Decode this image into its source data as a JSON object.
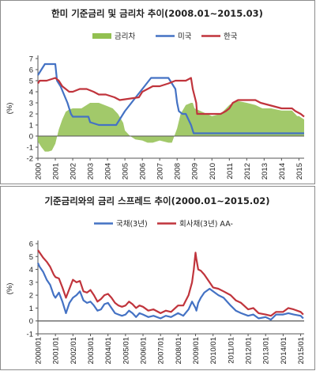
{
  "chart_data": [
    {
      "type": "line",
      "title": "한미 기준금리  및 금리차 추이(2008.01~2015.03)",
      "ylabel": "(%)",
      "ylim": [
        -2,
        7
      ],
      "yticks": [
        "-2",
        "-1",
        "0",
        "1",
        "2",
        "3",
        "4",
        "5",
        "6",
        "7"
      ],
      "xlim": [
        2000,
        2015.3
      ],
      "xticks": [
        "2000",
        "2001",
        "2002",
        "2003",
        "2004",
        "2005",
        "2006",
        "2007",
        "2008",
        "2009",
        "2010",
        "2011",
        "2012",
        "2013",
        "2014",
        "2015"
      ],
      "grid": false,
      "legend_position": "top",
      "series": [
        {
          "name": "금리차",
          "kind": "area",
          "color": "#92c050",
          "x": [
            2000.0,
            2000.2,
            2000.4,
            2000.6,
            2000.8,
            2001.0,
            2001.2,
            2001.4,
            2001.6,
            2001.8,
            2002.0,
            2002.5,
            2003.0,
            2003.5,
            2004.0,
            2004.3,
            2004.6,
            2004.9,
            2005.0,
            2005.3,
            2005.6,
            2006.0,
            2006.3,
            2006.6,
            2007.0,
            2007.5,
            2007.7,
            2008.0,
            2008.2,
            2008.5,
            2008.8,
            2008.9,
            2009.0,
            2010.0,
            2010.5,
            2011.0,
            2011.4,
            2012.0,
            2012.5,
            2012.9,
            2013.0,
            2013.4,
            2014.0,
            2014.6,
            2014.9,
            2015.0,
            2015.3
          ],
          "values": [
            -0.5,
            -1.0,
            -1.4,
            -1.4,
            -1.3,
            -0.7,
            0.6,
            1.5,
            2.2,
            2.4,
            2.5,
            2.5,
            3.0,
            3.0,
            2.7,
            2.5,
            2.0,
            1.2,
            0.5,
            0.0,
            -0.3,
            -0.4,
            -0.6,
            -0.6,
            -0.4,
            -0.6,
            -0.6,
            0.7,
            2.0,
            2.8,
            3.0,
            3.0,
            2.5,
            1.8,
            2.0,
            2.8,
            3.2,
            3.0,
            2.8,
            2.5,
            2.5,
            2.5,
            2.3,
            2.3,
            1.8,
            1.8,
            1.5
          ]
        },
        {
          "name": "미국",
          "kind": "line",
          "color": "#4472c4",
          "x": [
            2000.0,
            2000.2,
            2000.4,
            2000.6,
            2001.0,
            2001.1,
            2001.3,
            2001.5,
            2001.7,
            2001.9,
            2002.0,
            2002.9,
            2003.0,
            2003.5,
            2004.5,
            2004.7,
            2005.0,
            2005.5,
            2006.0,
            2006.5,
            2007.5,
            2007.7,
            2007.9,
            2008.0,
            2008.1,
            2008.3,
            2008.5,
            2008.8,
            2008.95,
            2015.3
          ],
          "values": [
            5.5,
            6.0,
            6.5,
            6.5,
            6.5,
            5.0,
            4.5,
            3.75,
            3.0,
            2.0,
            1.75,
            1.75,
            1.25,
            1.0,
            1.0,
            1.5,
            2.25,
            3.25,
            4.25,
            5.25,
            5.25,
            4.75,
            4.25,
            3.0,
            2.25,
            2.0,
            2.0,
            1.0,
            0.25,
            0.25
          ]
        },
        {
          "name": "한국",
          "kind": "line",
          "color": "#c0343c",
          "x": [
            2000.0,
            2000.1,
            2000.5,
            2001.0,
            2001.2,
            2001.4,
            2001.8,
            2002.0,
            2002.4,
            2002.8,
            2003.2,
            2003.5,
            2003.9,
            2004.4,
            2004.7,
            2005.8,
            2006.0,
            2006.6,
            2007.0,
            2007.5,
            2007.9,
            2008.0,
            2008.5,
            2008.8,
            2008.9,
            2009.1,
            2009.15,
            2010.5,
            2010.8,
            2011.0,
            2011.2,
            2011.5,
            2012.5,
            2012.8,
            2013.4,
            2014.0,
            2014.6,
            2014.8,
            2015.1,
            2015.3
          ],
          "values": [
            4.75,
            5.0,
            5.0,
            5.25,
            5.0,
            4.5,
            4.0,
            4.0,
            4.25,
            4.25,
            4.0,
            3.75,
            3.75,
            3.5,
            3.25,
            3.5,
            4.0,
            4.5,
            4.5,
            4.75,
            5.0,
            5.0,
            5.0,
            5.25,
            4.25,
            3.0,
            2.0,
            2.0,
            2.25,
            2.5,
            3.0,
            3.25,
            3.25,
            3.0,
            2.75,
            2.5,
            2.5,
            2.25,
            2.0,
            1.75
          ]
        }
      ]
    },
    {
      "type": "line",
      "title": "기준금리와의 금리 스프레드 추이(2000.01~2015.02)",
      "ylabel": "(%)",
      "ylim": [
        -1,
        6
      ],
      "yticks": [
        "-1",
        "0",
        "1",
        "2",
        "3",
        "4",
        "5",
        "6"
      ],
      "xlim": [
        2000,
        2015.2
      ],
      "xticks": [
        "2000/01",
        "2001/01",
        "2002/01",
        "2003/01",
        "2004/01",
        "2005/01",
        "2006/01",
        "2007/01",
        "2008/01",
        "2009/01",
        "2010/01",
        "2011/01",
        "2012/01",
        "2013/01",
        "2014/01",
        "2015/01"
      ],
      "grid": false,
      "legend_position": "top",
      "series": [
        {
          "name": "국채(3년)",
          "color": "#4472c4",
          "x": [
            2000.0,
            2000.1,
            2000.3,
            2000.5,
            2000.7,
            2000.9,
            2001.0,
            2001.2,
            2001.4,
            2001.6,
            2001.8,
            2002.0,
            2002.2,
            2002.4,
            2002.6,
            2002.8,
            2003.0,
            2003.2,
            2003.4,
            2003.6,
            2003.8,
            2004.0,
            2004.2,
            2004.4,
            2004.6,
            2004.8,
            2005.0,
            2005.2,
            2005.4,
            2005.6,
            2005.8,
            2006.0,
            2006.3,
            2006.6,
            2007.0,
            2007.3,
            2007.6,
            2008.0,
            2008.3,
            2008.6,
            2008.8,
            2009.0,
            2009.05,
            2009.15,
            2009.3,
            2009.5,
            2009.8,
            2010.0,
            2010.3,
            2010.6,
            2011.0,
            2011.3,
            2011.6,
            2012.0,
            2012.3,
            2012.6,
            2013.0,
            2013.3,
            2013.6,
            2014.0,
            2014.3,
            2014.6,
            2015.0,
            2015.15
          ],
          "values": [
            4.5,
            4.2,
            3.8,
            3.2,
            2.8,
            2.0,
            1.8,
            2.2,
            1.5,
            0.6,
            1.4,
            1.8,
            2.0,
            2.3,
            1.6,
            1.4,
            1.5,
            1.2,
            0.8,
            0.9,
            1.3,
            1.4,
            1.0,
            0.6,
            0.5,
            0.4,
            0.5,
            0.8,
            0.6,
            0.3,
            0.6,
            0.5,
            0.3,
            0.4,
            0.2,
            0.4,
            0.3,
            0.6,
            0.4,
            0.9,
            1.5,
            1.0,
            0.8,
            1.4,
            1.8,
            2.2,
            2.5,
            2.3,
            2.0,
            1.8,
            1.2,
            0.8,
            0.6,
            0.4,
            0.5,
            0.2,
            0.3,
            0.1,
            0.5,
            0.5,
            0.6,
            0.5,
            0.4,
            0.2
          ]
        },
        {
          "name": "회사채(3년) AA-",
          "color": "#c0343c",
          "x": [
            2000.0,
            2000.1,
            2000.3,
            2000.5,
            2000.7,
            2000.9,
            2001.0,
            2001.2,
            2001.4,
            2001.6,
            2001.8,
            2002.0,
            2002.2,
            2002.4,
            2002.6,
            2002.8,
            2003.0,
            2003.2,
            2003.4,
            2003.6,
            2003.8,
            2004.0,
            2004.2,
            2004.4,
            2004.6,
            2004.8,
            2005.0,
            2005.2,
            2005.4,
            2005.6,
            2005.8,
            2006.0,
            2006.3,
            2006.6,
            2007.0,
            2007.3,
            2007.6,
            2008.0,
            2008.3,
            2008.6,
            2008.8,
            2008.9,
            2009.0,
            2009.05,
            2009.15,
            2009.3,
            2009.5,
            2009.8,
            2010.0,
            2010.3,
            2010.6,
            2011.0,
            2011.3,
            2011.6,
            2012.0,
            2012.3,
            2012.6,
            2013.0,
            2013.3,
            2013.6,
            2014.0,
            2014.3,
            2014.6,
            2015.0,
            2015.15
          ],
          "values": [
            5.5,
            5.3,
            4.9,
            4.6,
            4.2,
            3.6,
            3.4,
            3.3,
            2.6,
            1.8,
            2.5,
            3.2,
            3.0,
            3.1,
            2.3,
            2.2,
            2.4,
            2.0,
            1.5,
            1.7,
            2.0,
            2.1,
            1.8,
            1.4,
            1.2,
            1.1,
            1.2,
            1.5,
            1.3,
            1.0,
            1.2,
            1.1,
            0.8,
            0.9,
            0.6,
            0.8,
            0.7,
            1.2,
            1.2,
            2.0,
            3.0,
            4.0,
            5.3,
            4.8,
            4.0,
            3.9,
            3.6,
            3.0,
            2.6,
            2.5,
            2.3,
            2.0,
            1.6,
            1.4,
            0.9,
            1.0,
            0.6,
            0.5,
            0.4,
            0.7,
            0.7,
            1.0,
            0.9,
            0.7,
            0.5
          ]
        }
      ]
    }
  ]
}
